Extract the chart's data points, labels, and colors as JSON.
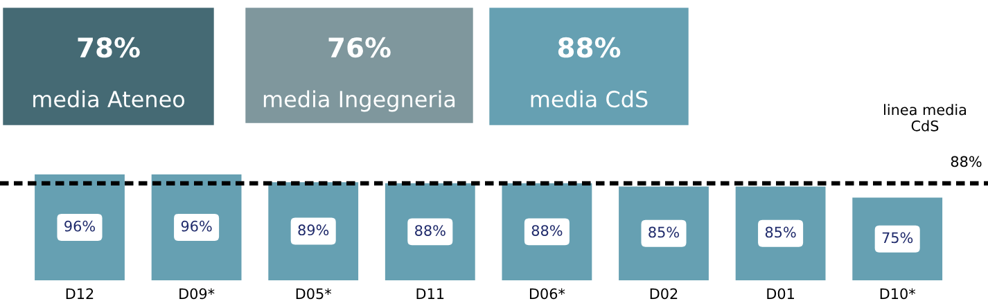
{
  "chart_data": {
    "type": "bar",
    "categories": [
      "D12",
      "D09*",
      "D05*",
      "D11",
      "D06*",
      "D02",
      "D01",
      "D10*"
    ],
    "values": [
      96,
      96,
      89,
      88,
      88,
      85,
      85,
      75
    ],
    "value_labels": [
      "96%",
      "96%",
      "89%",
      "88%",
      "88%",
      "85%",
      "85%",
      "75%"
    ],
    "color": "#66a0b2",
    "ref_lines": [
      {
        "axis": "y",
        "value": 88,
        "label": "linea media\nCdS",
        "color": "#000000",
        "line_style": "dashed"
      }
    ],
    "annotations": [
      "78%\nmedia Ateneo",
      "76%\nmedia Ingegneria",
      "88%\nmedia CdS",
      {
        "text": "88%",
        "y": 88
      }
    ],
    "grid": false,
    "legend": false
  }
}
